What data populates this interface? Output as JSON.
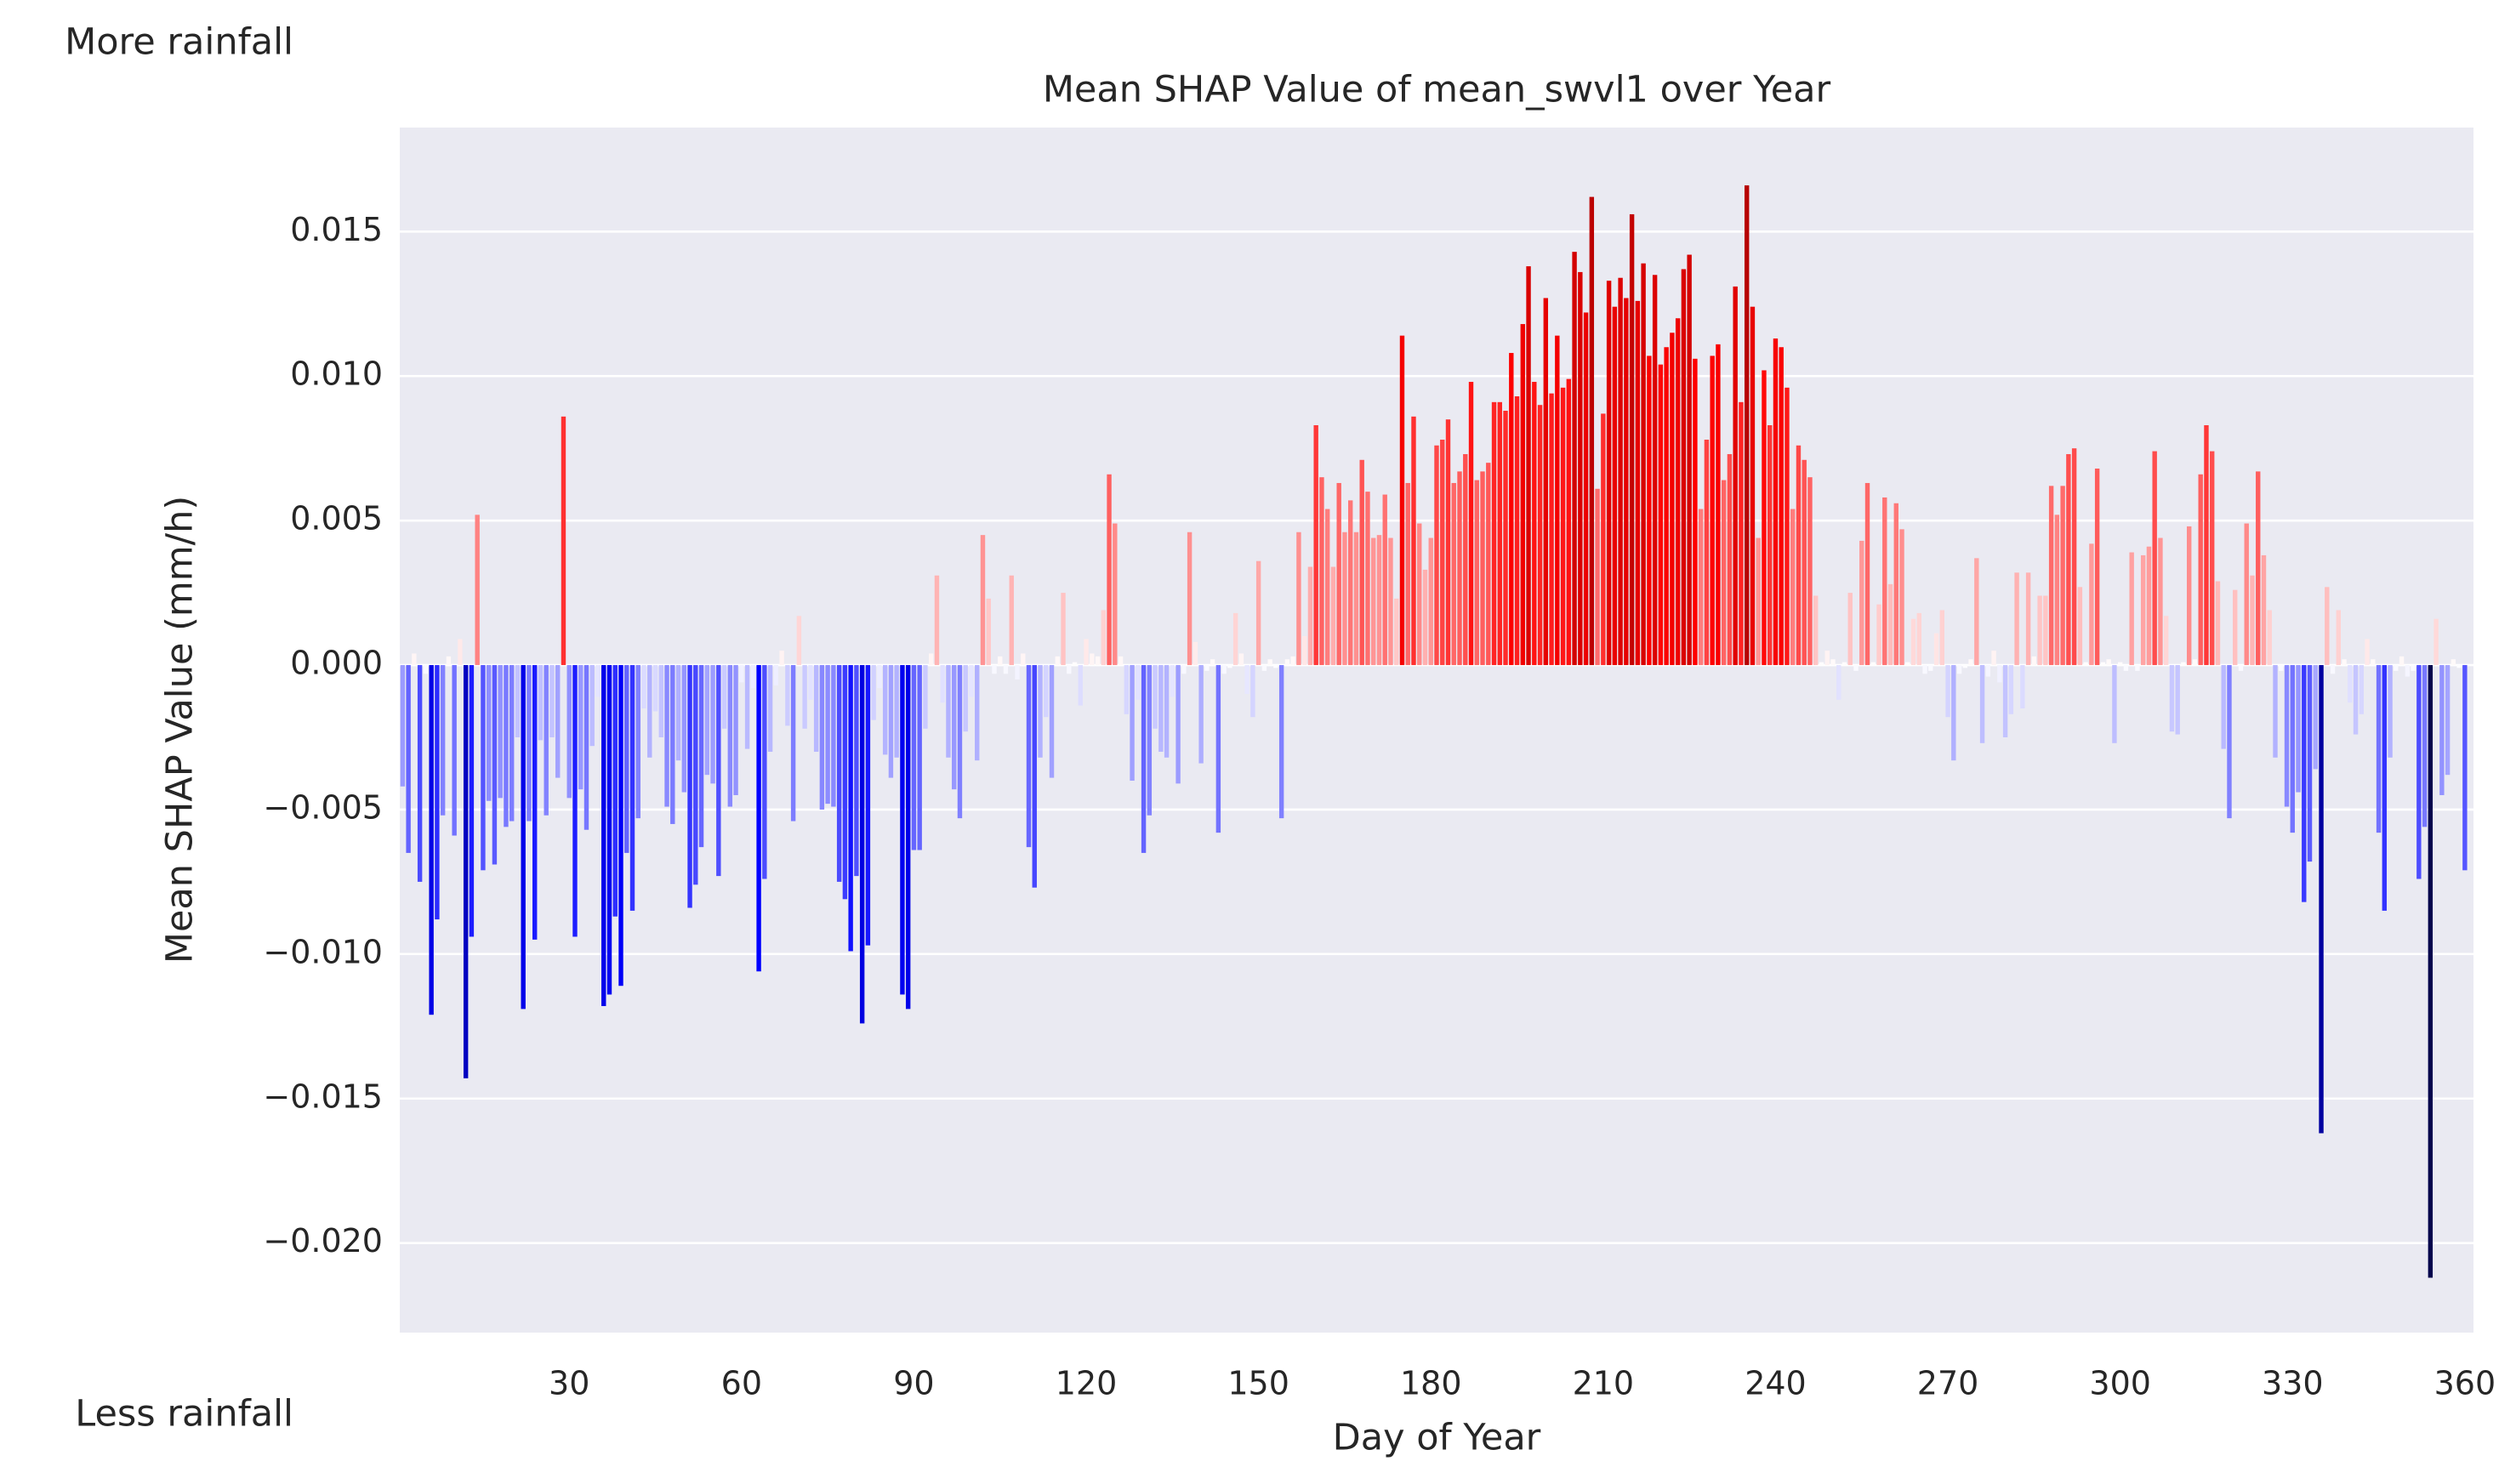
{
  "chart_data": {
    "type": "bar",
    "title": "Mean SHAP Value of mean_swvl1 over Year",
    "xlabel": "Day of Year",
    "ylabel": "Mean SHAP Value (mm/h)",
    "annotations": [
      "More rainfall",
      "Less rainfall"
    ],
    "colormap": [
      "#00004c",
      "#0000ff",
      "#ffffff",
      "#ff0000",
      "#800000"
    ],
    "grid": true,
    "xlim": [
      0.5,
      361.5
    ],
    "xticks": [
      30,
      60,
      90,
      120,
      150,
      180,
      210,
      240,
      270,
      300,
      330,
      360
    ],
    "ylim": [
      -0.0231,
      0.0186
    ],
    "yticks": [
      {
        "value": -0.02,
        "label": "−0.020"
      },
      {
        "value": -0.015,
        "label": "−0.015"
      },
      {
        "value": -0.01,
        "label": "−0.010"
      },
      {
        "value": -0.005,
        "label": "−0.005"
      },
      {
        "value": 0,
        "label": "0.000"
      },
      {
        "value": 0.005,
        "label": "0.005"
      },
      {
        "value": 0.01,
        "label": "0.010"
      },
      0.015
    ],
    "x": [
      1,
      2,
      3,
      4,
      5,
      6,
      7,
      8,
      9,
      10,
      11,
      12,
      13,
      14,
      15,
      16,
      17,
      18,
      19,
      20,
      21,
      22,
      23,
      24,
      25,
      26,
      27,
      28,
      29,
      30,
      31,
      32,
      33,
      34,
      35,
      36,
      37,
      38,
      39,
      40,
      41,
      42,
      43,
      44,
      45,
      46,
      47,
      48,
      49,
      50,
      51,
      52,
      53,
      54,
      55,
      56,
      57,
      58,
      59,
      60,
      61,
      62,
      63,
      64,
      65,
      66,
      67,
      68,
      69,
      70,
      71,
      72,
      73,
      74,
      75,
      76,
      77,
      78,
      79,
      80,
      81,
      82,
      83,
      84,
      85,
      86,
      87,
      88,
      89,
      90,
      91,
      92,
      93,
      94,
      95,
      96,
      97,
      98,
      99,
      100,
      101,
      102,
      103,
      104,
      105,
      106,
      107,
      108,
      109,
      110,
      111,
      112,
      113,
      114,
      115,
      116,
      117,
      118,
      119,
      120,
      121,
      122,
      123,
      124,
      125,
      126,
      127,
      128,
      129,
      130,
      131,
      132,
      133,
      134,
      135,
      136,
      137,
      138,
      139,
      140,
      141,
      142,
      143,
      144,
      145,
      146,
      147,
      148,
      149,
      150,
      151,
      152,
      153,
      154,
      155,
      156,
      157,
      158,
      159,
      160,
      161,
      162,
      163,
      164,
      165,
      166,
      167,
      168,
      169,
      170,
      171,
      172,
      173,
      174,
      175,
      176,
      177,
      178,
      179,
      180,
      181,
      182,
      183,
      184,
      185,
      186,
      187,
      188,
      189,
      190,
      191,
      192,
      193,
      194,
      195,
      196,
      197,
      198,
      199,
      200,
      201,
      202,
      203,
      204,
      205,
      206,
      207,
      208,
      209,
      210,
      211,
      212,
      213,
      214,
      215,
      216,
      217,
      218,
      219,
      220,
      221,
      222,
      223,
      224,
      225,
      226,
      227,
      228,
      229,
      230,
      231,
      232,
      233,
      234,
      235,
      236,
      237,
      238,
      239,
      240,
      241,
      242,
      243,
      244,
      245,
      246,
      247,
      248,
      249,
      250,
      251,
      252,
      253,
      254,
      255,
      256,
      257,
      258,
      259,
      260,
      261,
      262,
      263,
      264,
      265,
      266,
      267,
      268,
      269,
      270,
      271,
      272,
      273,
      274,
      275,
      276,
      277,
      278,
      279,
      280,
      281,
      282,
      283,
      284,
      285,
      286,
      287,
      288,
      289,
      290,
      291,
      292,
      293,
      294,
      295,
      296,
      297,
      298,
      299,
      300,
      301,
      302,
      303,
      304,
      305,
      306,
      307,
      308,
      309,
      310,
      311,
      312,
      313,
      314,
      315,
      316,
      317,
      318,
      319,
      320,
      321,
      322,
      323,
      324,
      325,
      326,
      327,
      328,
      329,
      330,
      331,
      332,
      333,
      334,
      335,
      336,
      337,
      338,
      339,
      340,
      341,
      342,
      343,
      344,
      345,
      346,
      347,
      348,
      349,
      350,
      351,
      352,
      353,
      354,
      355,
      356,
      357,
      358,
      359,
      360
    ],
    "values": [
      -0.0042,
      -0.0065,
      0.0004,
      -0.0075,
      -0.0003,
      -0.0121,
      -0.0088,
      -0.0052,
      0.0003,
      -0.0059,
      0.0009,
      -0.0143,
      -0.0094,
      0.0052,
      -0.0071,
      -0.0047,
      -0.0069,
      -0.0046,
      -0.0056,
      -0.0054,
      -0.0025,
      -0.0119,
      -0.0054,
      -0.0095,
      -0.0026,
      -0.0052,
      -0.0025,
      -0.0039,
      0.0086,
      -0.0046,
      -0.0094,
      -0.0043,
      -0.0057,
      -0.0028,
      -0.0011,
      -0.0118,
      -0.0114,
      -0.0087,
      -0.0111,
      -0.0065,
      -0.0085,
      -0.0053,
      -0.0015,
      -0.0032,
      -0.0016,
      -0.0025,
      -0.0049,
      -0.0055,
      -0.0033,
      -0.0044,
      -0.0084,
      -0.0076,
      -0.0063,
      -0.0038,
      -0.0041,
      -0.0073,
      -0.0022,
      -0.0049,
      -0.0045,
      -0.0006,
      -0.0029,
      -0.0008,
      -0.0106,
      -0.0074,
      -0.003,
      -0.0007,
      0.0005,
      -0.0021,
      -0.0054,
      0.0017,
      -0.0022,
      -0.0012,
      -0.003,
      -0.005,
      -0.0048,
      -0.0049,
      -0.0075,
      -0.0081,
      -0.0099,
      -0.0073,
      -0.0124,
      -0.0097,
      -0.0019,
      -0.0008,
      -0.0031,
      -0.0039,
      -0.0032,
      -0.0114,
      -0.0119,
      -0.0064,
      -0.0064,
      -0.0022,
      0.0004,
      0.0031,
      -0.0013,
      -0.0032,
      -0.0043,
      -0.0053,
      -0.0023,
      -0.0011,
      -0.0033,
      0.0045,
      0.0023,
      -0.0003,
      0.0003,
      -0.0003,
      0.0031,
      -0.0005,
      0.0004,
      -0.0063,
      -0.0077,
      -0.0032,
      -0.0018,
      -0.0039,
      0.0003,
      0.0025,
      -0.0003,
      0.0001,
      -0.0014,
      0.0009,
      0.0004,
      0.0003,
      0.0019,
      0.0066,
      0.0049,
      0.0003,
      -0.0017,
      -0.004,
      -0.0012,
      -0.0065,
      -0.0052,
      -0.0022,
      -0.003,
      -0.0032,
      -0.0011,
      -0.0041,
      -0.0003,
      0.0046,
      0.0008,
      -0.0034,
      -0.0002,
      0.0002,
      -0.0058,
      -0.0003,
      -0.0001,
      0.0018,
      0.0004,
      -0.001,
      -0.0018,
      0.0036,
      -0.0002,
      0.0002,
      -0.0001,
      -0.0053,
      0.0002,
      0.0003,
      0.0046,
      0.001,
      0.0034,
      0.0083,
      0.0065,
      0.0054,
      0.0034,
      0.0063,
      0.0046,
      0.0057,
      0.0046,
      0.0071,
      0.006,
      0.0044,
      0.0045,
      0.0059,
      0.0044,
      0.0023,
      0.0114,
      0.0063,
      0.0086,
      0.0049,
      0.0033,
      0.0044,
      0.0076,
      0.0078,
      0.0085,
      0.0063,
      0.0067,
      0.0073,
      0.0098,
      0.0064,
      0.0067,
      0.007,
      0.0091,
      0.0091,
      0.0088,
      0.0108,
      0.0093,
      0.0118,
      0.0138,
      0.0098,
      0.009,
      0.0127,
      0.0094,
      0.0114,
      0.0096,
      0.0099,
      0.0143,
      0.0136,
      0.0122,
      0.0162,
      0.0061,
      0.0087,
      0.0133,
      0.0124,
      0.0134,
      0.0127,
      0.0156,
      0.0126,
      0.0139,
      0.0107,
      0.0135,
      0.0104,
      0.011,
      0.0115,
      0.012,
      0.0137,
      0.0142,
      0.0106,
      0.0054,
      0.0078,
      0.0107,
      0.0111,
      0.0064,
      0.0073,
      0.0131,
      0.0091,
      0.0166,
      0.0124,
      0.0044,
      0.0102,
      0.0083,
      0.0113,
      0.011,
      0.0096,
      0.0054,
      0.0076,
      0.0071,
      0.0065,
      0.0024,
      0.0001,
      0.0005,
      0.0002,
      -0.0012,
      0.0001,
      0.0025,
      -0.0002,
      0.0043,
      0.0063,
      0.0001,
      0.0021,
      0.0058,
      0.0028,
      0.0056,
      0.0047,
      0.0001,
      0.0016,
      0.0018,
      -0.0003,
      -0.0002,
      0.0011,
      0.0019,
      -0.0018,
      -0.0033,
      -0.0003,
      -0.0001,
      0.0002,
      0.0037,
      -0.0027,
      -0.0004,
      0.0005,
      -0.0006,
      -0.0025,
      -0.0017,
      0.0032,
      -0.0015,
      0.0032,
      0.0003,
      0.0024,
      0.0024,
      0.0062,
      0.0052,
      0.0062,
      0.0073,
      0.0075,
      0.0027,
      0.0001,
      0.0042,
      0.0068,
      0.0001,
      0.0002,
      -0.0027,
      0.0001,
      -0.0002,
      0.0039,
      -0.0002,
      0.0038,
      0.0041,
      0.0074,
      0.0044,
      0.0017,
      -0.0023,
      -0.0024,
      0.0001,
      0.0048,
      0.0002,
      0.0066,
      0.0083,
      0.0074,
      0.0029,
      -0.0029,
      -0.0053,
      0.0026,
      -0.0002,
      0.0049,
      0.0031,
      0.0067,
      0.0038,
      0.0019,
      -0.0032,
      -0.0002,
      -0.0049,
      -0.0058,
      -0.0044,
      -0.0082,
      -0.0068,
      -0.0036,
      -0.0162,
      0.0027,
      -0.0003,
      0.0019,
      0.0002,
      -0.0013,
      -0.0024,
      -0.0017,
      0.0009,
      0.0002,
      -0.0058,
      -0.0085,
      -0.0032,
      -0.0002,
      0.0003,
      -0.0004,
      -0.0002,
      -0.0074,
      -0.0056,
      -0.0212,
      0.0016,
      -0.0045,
      -0.0038,
      0.0002,
      -0.0001,
      -0.0071
    ]
  }
}
